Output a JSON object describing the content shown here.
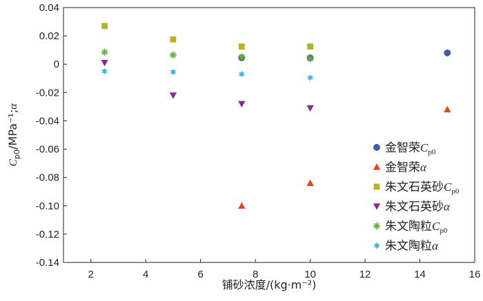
{
  "chart_data": {
    "type": "scatter",
    "xlabel": "铺砂浓度/(kg·m⁻²)",
    "ylabel": "Cp0/MPa⁻¹;α",
    "xlim": [
      1,
      16
    ],
    "ylim": [
      -0.14,
      0.04
    ],
    "x_ticks": [
      "2",
      "4",
      "6",
      "8",
      "10",
      "12",
      "14",
      "16"
    ],
    "y_ticks": [
      "-0.14",
      "-0.12",
      "-0.10",
      "-0.08",
      "-0.06",
      "-0.04",
      "-0.02",
      "0",
      "0.02",
      "0.04"
    ],
    "grid": false,
    "legend_position": "bottom-right",
    "series": [
      {
        "name": "金智荣Cp0",
        "marker": "circle",
        "color": "#3d5fa6",
        "points": [
          [
            7.5,
            0.0045
          ],
          [
            10,
            0.0045
          ],
          [
            15,
            0.008
          ]
        ]
      },
      {
        "name": "金智荣α",
        "marker": "triangle-up",
        "color": "#e8401e",
        "points": [
          [
            7.5,
            -0.1
          ],
          [
            10,
            -0.084
          ],
          [
            15,
            -0.032
          ]
        ]
      },
      {
        "name": "朱文石英砂Cp0",
        "marker": "square",
        "color": "#b5b32e",
        "points": [
          [
            2.5,
            0.027
          ],
          [
            5,
            0.0175
          ],
          [
            7.5,
            0.0125
          ],
          [
            10,
            0.0125
          ]
        ]
      },
      {
        "name": "朱文石英砂α",
        "marker": "triangle-down",
        "color": "#8b2a8f",
        "points": [
          [
            2.5,
            0.001
          ],
          [
            5,
            -0.022
          ],
          [
            7.5,
            -0.028
          ],
          [
            10,
            -0.031
          ]
        ]
      },
      {
        "name": "朱文陶粒Cp0",
        "marker": "asterisk",
        "color": "#6aa83d",
        "points": [
          [
            2.5,
            0.0085
          ],
          [
            5,
            0.0065
          ],
          [
            7.5,
            0.005
          ],
          [
            10,
            0.004
          ]
        ]
      },
      {
        "name": "朱文陶粒α",
        "marker": "star",
        "color": "#4db3dc",
        "points": [
          [
            2.5,
            -0.005
          ],
          [
            5,
            -0.0055
          ],
          [
            7.5,
            -0.007
          ],
          [
            10,
            -0.0095
          ]
        ]
      }
    ]
  }
}
